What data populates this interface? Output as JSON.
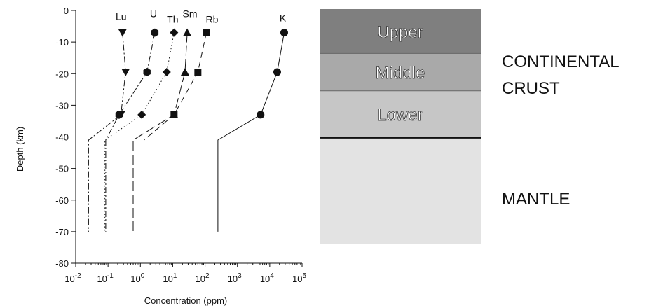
{
  "chart_data": {
    "type": "line",
    "xlabel": "Concentration (ppm)",
    "ylabel": "Depth (km)",
    "xscale": "log",
    "xlim": [
      0.01,
      100000
    ],
    "ylim": [
      -80,
      0
    ],
    "x_tick_labels": [
      "10-2",
      "10-1",
      "100",
      "101",
      "102",
      "103",
      "104",
      "105"
    ],
    "y_ticks": [
      0,
      -10,
      -20,
      -30,
      -40,
      -50,
      -60,
      -70,
      -80
    ],
    "grid": false,
    "series": [
      {
        "name": "Lu",
        "marker": "triangle-down",
        "dash": "dash-dot",
        "points": [
          [
            0.28,
            -7
          ],
          [
            0.35,
            -19.5
          ],
          [
            0.25,
            -33
          ],
          [
            0.025,
            -41
          ],
          [
            0.025,
            -70
          ]
        ]
      },
      {
        "name": "U",
        "marker": "hexagon",
        "dash": "dash-dot",
        "points": [
          [
            2.8,
            -7
          ],
          [
            1.6,
            -19.5
          ],
          [
            0.22,
            -33
          ],
          [
            0.085,
            -41
          ],
          [
            0.085,
            -70
          ]
        ]
      },
      {
        "name": "Th",
        "marker": "diamond",
        "dash": "dot",
        "points": [
          [
            11,
            -7
          ],
          [
            6.5,
            -19.5
          ],
          [
            1.1,
            -33
          ],
          [
            0.08,
            -41
          ],
          [
            0.08,
            -70
          ]
        ]
      },
      {
        "name": "Sm",
        "marker": "triangle-up",
        "dash": "long-dash",
        "points": [
          [
            28,
            -7
          ],
          [
            24,
            -19.5
          ],
          [
            11,
            -33
          ],
          [
            0.6,
            -41
          ],
          [
            0.6,
            -70
          ]
        ]
      },
      {
        "name": "Rb",
        "marker": "square",
        "dash": "dash",
        "points": [
          [
            110,
            -7
          ],
          [
            60,
            -19.5
          ],
          [
            11,
            -33
          ],
          [
            1.3,
            -41
          ],
          [
            1.3,
            -70
          ]
        ]
      },
      {
        "name": "K",
        "marker": "circle",
        "dash": "solid",
        "points": [
          [
            28000,
            -7
          ],
          [
            17000,
            -19.5
          ],
          [
            5200,
            -33
          ],
          [
            250,
            -41
          ],
          [
            250,
            -70
          ]
        ]
      }
    ],
    "layers": [
      {
        "label": "Upper",
        "top": 0,
        "bottom": -14,
        "color": "#7f7f7f"
      },
      {
        "label": "Middle",
        "top": -14,
        "bottom": -26,
        "color": "#a9a9a9"
      },
      {
        "label": "Lower",
        "top": -26,
        "bottom": -41,
        "color": "#c6c6c6"
      },
      {
        "label": "",
        "top": -41,
        "bottom": -75,
        "color": "#e3e3e3"
      }
    ],
    "side_labels": {
      "crust_line1": "CONTINENTAL",
      "crust_line2": "CRUST",
      "mantle": "MANTLE"
    }
  }
}
